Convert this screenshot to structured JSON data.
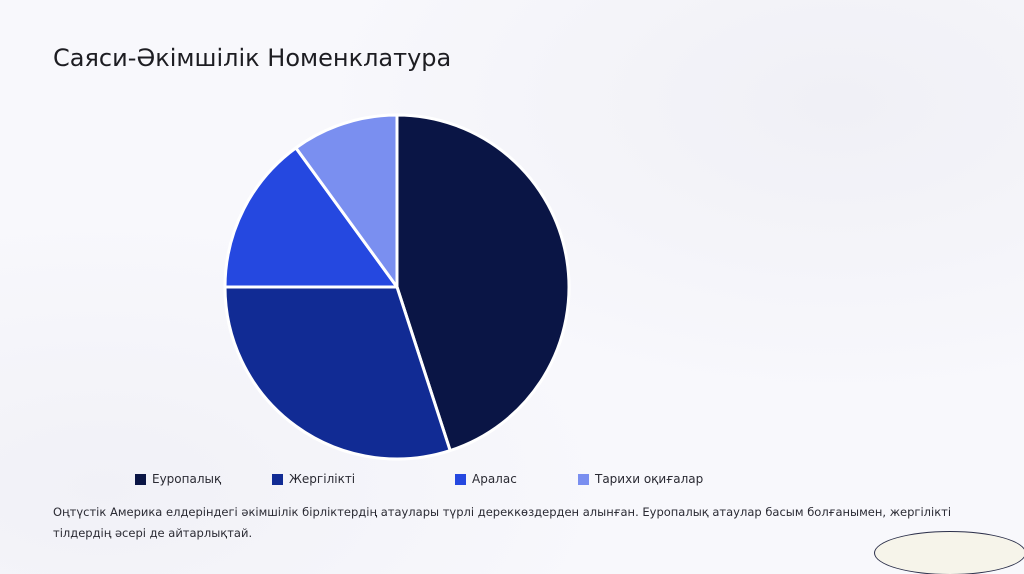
{
  "slide": {
    "title": "Саяси-Әкімшілік Номенклатура",
    "description": "Оңтүстік Америка елдеріндегі әкімшілік бірліктердің атаулары түрлі дереккөздерден алынған. Еуропалық атаулар басым болғанымен, жергілікті тілдердің әсері де айтарлықтай."
  },
  "colors": {
    "background": "#f8f8fc",
    "slice_border": "#ffffff"
  },
  "chart_data": {
    "type": "pie",
    "title": "",
    "categories": [
      "Еуропалық",
      "Жергілікті",
      "Аралас",
      "Тарихи оқиғалар"
    ],
    "values": [
      45,
      30,
      15,
      10
    ],
    "colors": [
      "#0a1545",
      "#112b94",
      "#2548e0",
      "#7a8ff0"
    ],
    "start_angle": "12 o'clock",
    "direction": "clockwise",
    "legend_position": "bottom"
  }
}
